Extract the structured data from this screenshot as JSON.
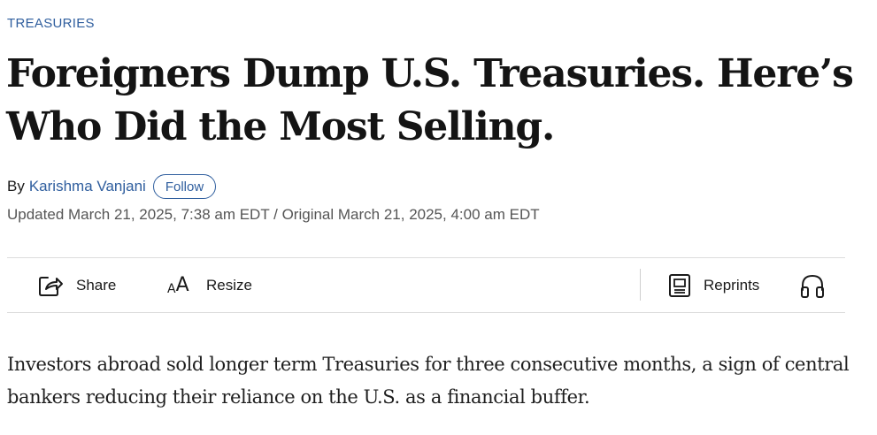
{
  "section": {
    "tag": "TREASURIES"
  },
  "headline": "Foreigners Dump U.S. Treasuries. Here’s Who Did the Most Selling.",
  "byline": {
    "prefix": "By",
    "author": "Karishma Vanjani",
    "follow_label": "Follow"
  },
  "timestamp": "Updated March 21, 2025, 7:38 am EDT / Original March 21, 2025, 4:00 am EDT",
  "toolbar": {
    "share_label": "Share",
    "share_icon": "share-icon",
    "resize_label": "Resize",
    "resize_icon": "text-resize-icon",
    "resize_glyph_small": "A",
    "resize_glyph_large": "A",
    "reprints_label": "Reprints",
    "reprints_icon": "reprints-icon",
    "listen_icon": "headphones-icon"
  },
  "dek": "Investors abroad sold longer term Treasuries for three consecutive months, a sign of central bankers reducing their reliance on the U.S. as a financial buffer.",
  "colors": {
    "link_blue": "#2f5e9e",
    "headline": "#141414",
    "muted_text": "#555555",
    "rule": "#dcdcdc"
  }
}
